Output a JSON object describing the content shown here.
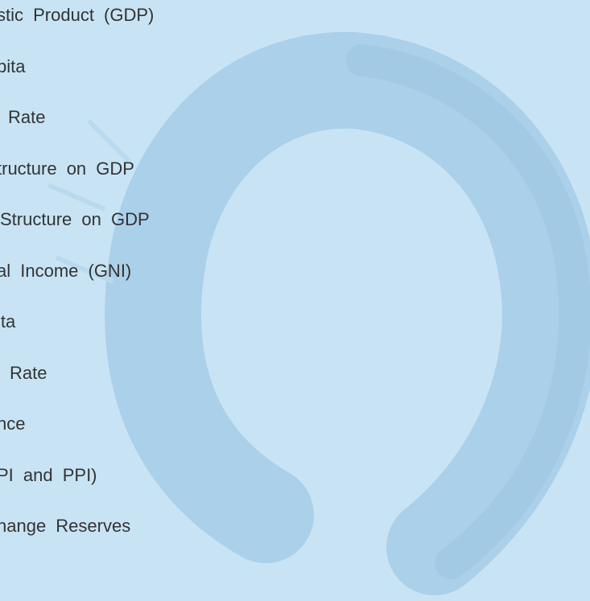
{
  "menu": {
    "items": [
      "stic Product (GDP)",
      "pita",
      "Rate",
      "tructure on GDP",
      "Structure on GDP",
      "al Income (GNI)",
      "ita",
      "Rate",
      "nce",
      "PI and PPI)",
      "hange Reserves"
    ]
  }
}
